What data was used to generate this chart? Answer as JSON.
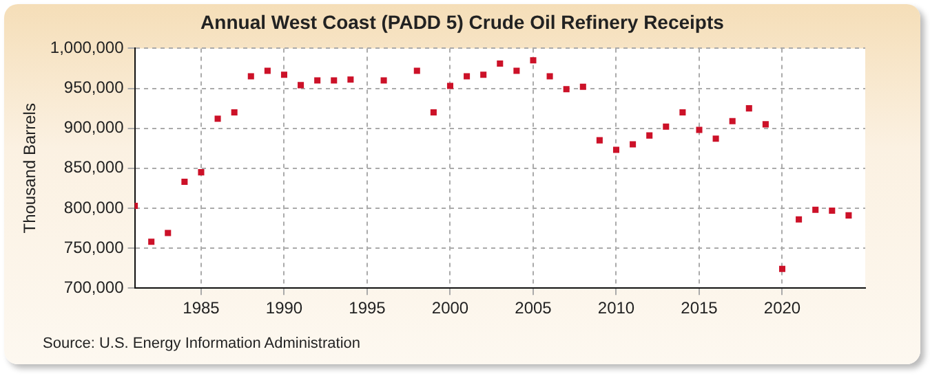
{
  "chart_data": {
    "type": "scatter",
    "title": "Annual West Coast (PADD 5) Crude Oil Refinery Receipts",
    "ylabel": "Thousand Barrels",
    "annotations": [
      "Source: U.S. Energy Information Administration"
    ],
    "x": [
      1981,
      1982,
      1983,
      1984,
      1985,
      1986,
      1987,
      1988,
      1989,
      1990,
      1991,
      1992,
      1993,
      1994,
      1995,
      1996,
      1997,
      1998,
      1999,
      2000,
      2001,
      2002,
      2003,
      2004,
      2005,
      2006,
      2007,
      2008,
      2009,
      2010,
      2011,
      2012,
      2013,
      2014,
      2015,
      2016,
      2017,
      2018,
      2019,
      2020,
      2021,
      2022,
      2023,
      2024
    ],
    "series": [
      {
        "color": "#cc1128",
        "values": [
          803000,
          758000,
          769000,
          833000,
          845000,
          912000,
          920000,
          965000,
          972000,
          967000,
          954000,
          960000,
          960000,
          961000,
          null,
          960000,
          null,
          972000,
          920000,
          953000,
          965000,
          967000,
          981000,
          972000,
          985000,
          965000,
          949000,
          952000,
          885000,
          873000,
          880000,
          891000,
          902000,
          920000,
          898000,
          887000,
          909000,
          925000,
          905000,
          724000,
          786000,
          798000,
          797000,
          791000
        ]
      }
    ],
    "xlim": [
      1981,
      2025
    ],
    "xticks": [
      1985,
      1990,
      1995,
      2000,
      2005,
      2010,
      2015,
      2020
    ],
    "ylim": [
      700000,
      1000000
    ],
    "yticks": [
      {
        "value": 700000,
        "label": "700,000"
      },
      {
        "value": 750000,
        "label": "750,000"
      },
      {
        "value": 800000,
        "label": "800,000"
      },
      {
        "value": 850000,
        "label": "850,000"
      },
      {
        "value": 900000,
        "label": "900,000"
      },
      {
        "value": 950000,
        "label": "950,000"
      },
      {
        "value": 1000000,
        "label": "1,000,000"
      }
    ],
    "grid": true,
    "marker": "square",
    "legend": false
  }
}
